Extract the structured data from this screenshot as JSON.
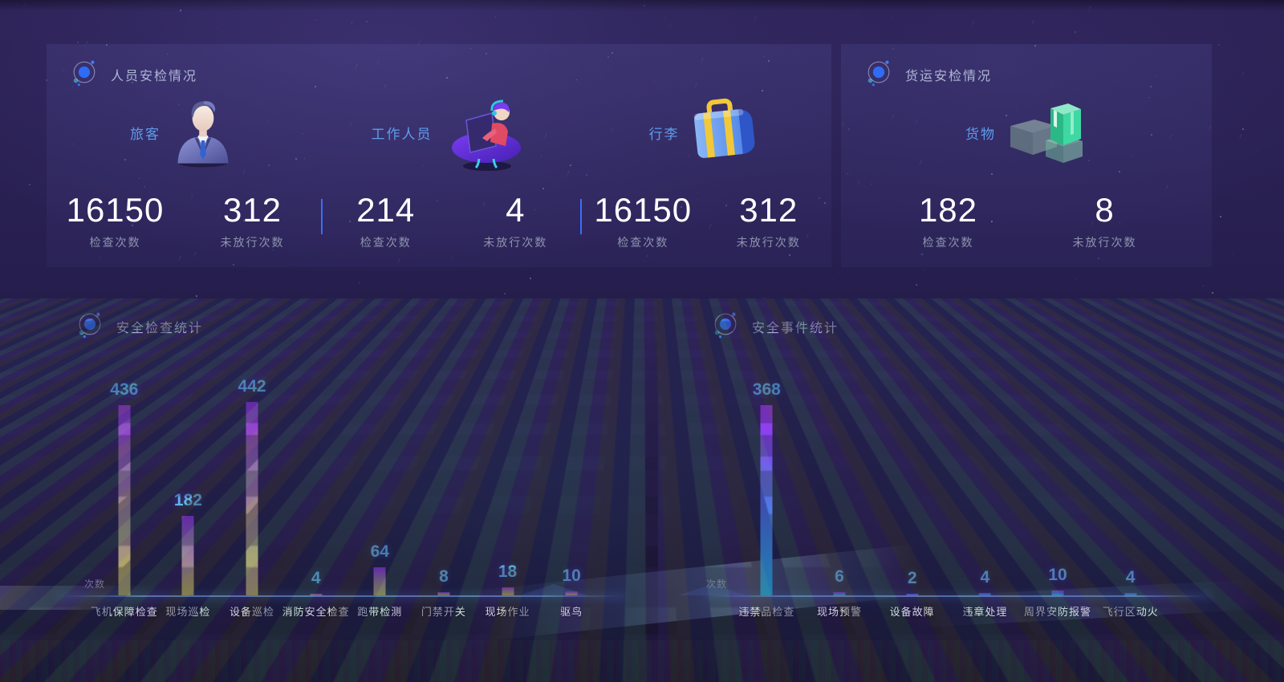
{
  "colors": {
    "value_label_blue": "#5db6f5",
    "group_label_blue": "#5d9cec",
    "divider_blue": "#3a6df8",
    "axis_glow_blue": "#7db4ff",
    "left_bar_gradient": [
      "#8f2be0",
      "#9a7f91",
      "#b5b156"
    ],
    "right_bar_gradient": [
      "#a22df2",
      "#4e66ee",
      "#19c3f7"
    ]
  },
  "panels": {
    "personnel": {
      "title": "人员安检情况",
      "groups": [
        {
          "label": "旅客",
          "icon": "businessman-icon",
          "stats": [
            {
              "value": "16150",
              "label": "检查次数"
            },
            {
              "value": "312",
              "label": "未放行次数"
            }
          ]
        },
        {
          "label": "工作人员",
          "icon": "staff-desk-icon",
          "stats": [
            {
              "value": "214",
              "label": "检查次数"
            },
            {
              "value": "4",
              "label": "未放行次数"
            }
          ]
        },
        {
          "label": "行李",
          "icon": "suitcase-icon",
          "stats": [
            {
              "value": "16150",
              "label": "检查次数"
            },
            {
              "value": "312",
              "label": "未放行次数"
            }
          ]
        }
      ]
    },
    "cargo": {
      "title": "货运安检情况",
      "groups": [
        {
          "label": "货物",
          "icon": "boxes-icon",
          "stats": [
            {
              "value": "182",
              "label": "检查次数"
            },
            {
              "value": "8",
              "label": "未放行次数"
            }
          ]
        }
      ]
    }
  },
  "chart_data": [
    {
      "type": "bar",
      "title": "安全检查统计",
      "ylabel": "次数",
      "categories": [
        "飞机保障检查",
        "现场巡检",
        "设备巡检",
        "消防安全检查",
        "跑带检测",
        "门禁开关",
        "现场作业",
        "驱鸟"
      ],
      "values": [
        436,
        182,
        442,
        4,
        64,
        8,
        18,
        10
      ],
      "ylim": [
        0,
        450
      ],
      "grid": false,
      "legend": "none",
      "bar_gradient": [
        "#8f2be0",
        "#9a7f91",
        "#b5b156"
      ]
    },
    {
      "type": "bar",
      "title": "安全事件统计",
      "ylabel": "次数",
      "categories": [
        "违禁品检查",
        "现场预警",
        "设备故障",
        "违章处理",
        "周界安防报警",
        "飞行区动火"
      ],
      "values": [
        368,
        6,
        2,
        4,
        10,
        4
      ],
      "ylim": [
        0,
        380
      ],
      "grid": false,
      "legend": "none",
      "bar_gradient": [
        "#a22df2",
        "#4e66ee",
        "#19c3f7"
      ]
    }
  ]
}
